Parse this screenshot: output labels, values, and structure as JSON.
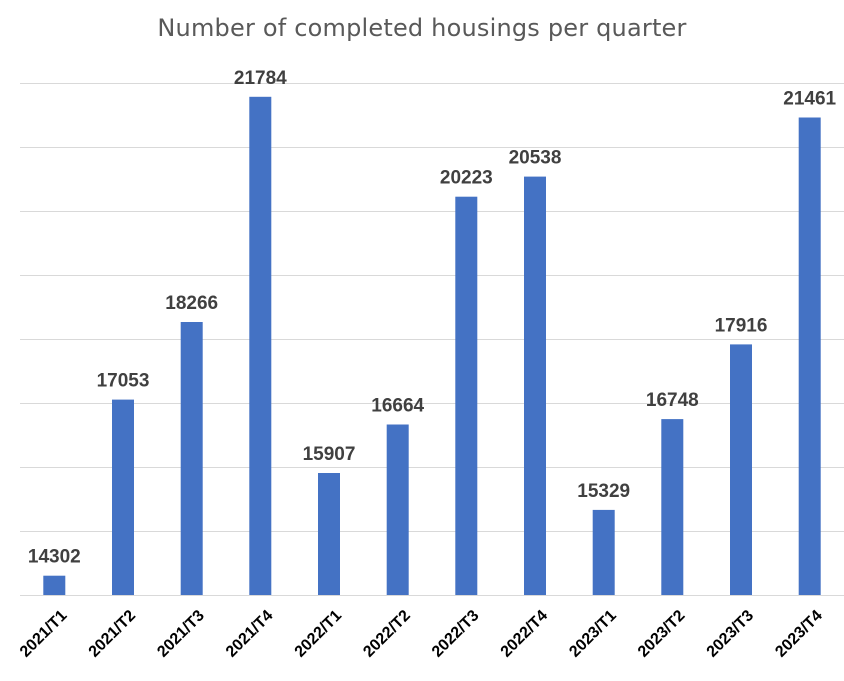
{
  "chart_data": {
    "type": "bar",
    "title": "Number of completed housings per quarter",
    "categories": [
      "2021/T1",
      "2021/T2",
      "2021/T3",
      "2021/T4",
      "2022/T1",
      "2022/T2",
      "2022/T3",
      "2022/T4",
      "2023/T1",
      "2023/T2",
      "2023/T3",
      "2023/T4"
    ],
    "values": [
      14302,
      17053,
      18266,
      21784,
      15907,
      16664,
      20223,
      20538,
      15329,
      16748,
      17916,
      21461
    ],
    "ylim": [
      14000,
      22000
    ],
    "y_tick_step": 1000,
    "y_axis_labels_visible": false,
    "grid": true,
    "data_labels": true,
    "colors": {
      "bar": "#4472c4",
      "grid": "#d9d9d9",
      "title": "#595959",
      "label": "#404040"
    }
  }
}
